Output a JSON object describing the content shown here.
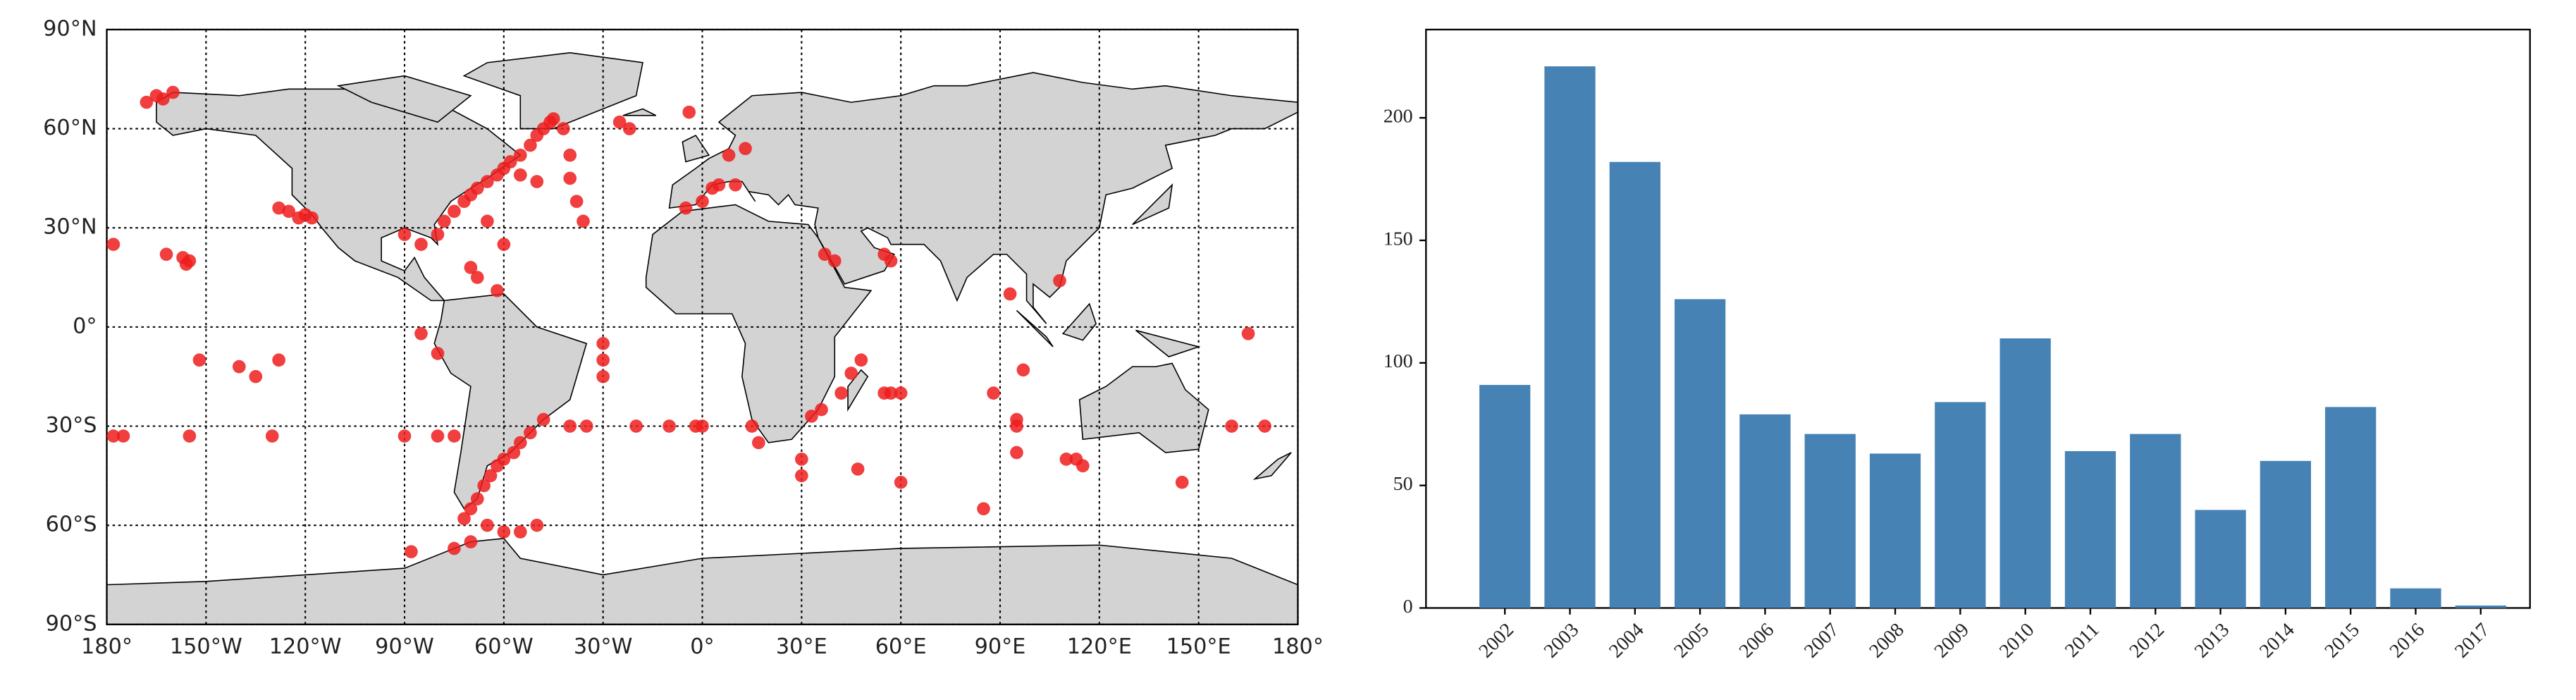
{
  "chart_data": [
    {
      "type": "scatter",
      "color": "#ee1c1c",
      "x": [
        -168,
        -165,
        -160,
        -163,
        -155,
        -156,
        -157,
        -178,
        -162,
        -125,
        -122,
        -120,
        -118,
        -128,
        -90,
        -85,
        -80,
        -78,
        -75,
        -72,
        -70,
        -68,
        -65,
        -62,
        -60,
        -58,
        -55,
        -52,
        -50,
        -48,
        -46,
        -45,
        -42,
        -40,
        -38,
        -36,
        -40,
        -50,
        -55,
        -70,
        -65,
        -68,
        -62,
        -60,
        -25,
        -22,
        -4,
        -5,
        0,
        3,
        5,
        10,
        8,
        13,
        37,
        40,
        55,
        57,
        48,
        55,
        57,
        60,
        42,
        45,
        36,
        33,
        30,
        30,
        47,
        60,
        -30,
        -30,
        -30,
        -40,
        -35,
        -10,
        -20,
        -2,
        0,
        15,
        17,
        -48,
        -52,
        -55,
        -57,
        -60,
        -62,
        -64,
        -66,
        -68,
        -70,
        -72,
        -65,
        -60,
        -55,
        -50,
        -70,
        -75,
        -80,
        -75,
        -90,
        -88,
        -85,
        -80,
        -152,
        -140,
        -135,
        -128,
        -155,
        -175,
        -178,
        -130,
        85,
        88,
        95,
        95,
        95,
        97,
        110,
        115,
        113,
        108,
        93,
        145,
        160,
        170,
        165
      ],
      "y": [
        68,
        70,
        71,
        69,
        20,
        19,
        21,
        25,
        22,
        35,
        33,
        34,
        33,
        36,
        28,
        25,
        28,
        32,
        35,
        38,
        40,
        42,
        44,
        46,
        48,
        50,
        52,
        55,
        58,
        60,
        62,
        63,
        60,
        52,
        38,
        32,
        45,
        44,
        46,
        18,
        32,
        15,
        11,
        25,
        62,
        60,
        65,
        36,
        38,
        42,
        43,
        43,
        52,
        54,
        22,
        20,
        22,
        20,
        -10,
        -20,
        -20,
        -20,
        -20,
        -14,
        -25,
        -27,
        -40,
        -45,
        -43,
        -47,
        -5,
        -10,
        -15,
        -30,
        -30,
        -30,
        -30,
        -30,
        -30,
        -30,
        -35,
        -28,
        -32,
        -35,
        -38,
        -40,
        -42,
        -45,
        -48,
        -52,
        -55,
        -58,
        -60,
        -62,
        -62,
        -60,
        -65,
        -67,
        -33,
        -33,
        -33,
        -68,
        -2,
        -8,
        -10,
        -12,
        -15,
        -10,
        -33,
        -33,
        -33,
        -33,
        -55,
        -20,
        -28,
        -38,
        -30,
        -13,
        -40,
        -42,
        -40,
        14,
        10,
        -47,
        -30,
        -30,
        -2
      ],
      "xlim": [
        -180,
        180
      ],
      "ylim": [
        -90,
        90
      ],
      "grid": true,
      "xticks": [
        {
          "value": -180,
          "label": "180°"
        },
        {
          "value": -150,
          "label": "150°W"
        },
        {
          "value": -120,
          "label": "120°W"
        },
        {
          "value": -90,
          "label": "90°W"
        },
        {
          "value": -60,
          "label": "60°W"
        },
        {
          "value": -30,
          "label": "30°W"
        },
        {
          "value": 0,
          "label": "0°"
        },
        {
          "value": 30,
          "label": "30°E"
        },
        {
          "value": 60,
          "label": "60°E"
        },
        {
          "value": 90,
          "label": "90°E"
        },
        {
          "value": 120,
          "label": "120°E"
        },
        {
          "value": 150,
          "label": "150°E"
        },
        {
          "value": 180,
          "label": "180°"
        }
      ],
      "yticks": [
        {
          "value": -90,
          "label": "90°S"
        },
        {
          "value": -60,
          "label": "60°S"
        },
        {
          "value": -30,
          "label": "30°S"
        },
        {
          "value": 0,
          "label": "0°"
        },
        {
          "value": 30,
          "label": "30°N"
        },
        {
          "value": 60,
          "label": "60°N"
        },
        {
          "value": 90,
          "label": "90°N"
        }
      ]
    },
    {
      "type": "bar",
      "color": "#4682b4",
      "categories": [
        "2002",
        "2003",
        "2004",
        "2005",
        "2006",
        "2007",
        "2008",
        "2009",
        "2010",
        "2011",
        "2012",
        "2013",
        "2014",
        "2015",
        "2016",
        "2017"
      ],
      "values": [
        91,
        221,
        182,
        126,
        79,
        71,
        63,
        84,
        110,
        64,
        71,
        40,
        60,
        82,
        8,
        1
      ],
      "ylim": [
        0,
        236
      ],
      "yticks": [
        0,
        50,
        100,
        150,
        200
      ]
    }
  ]
}
